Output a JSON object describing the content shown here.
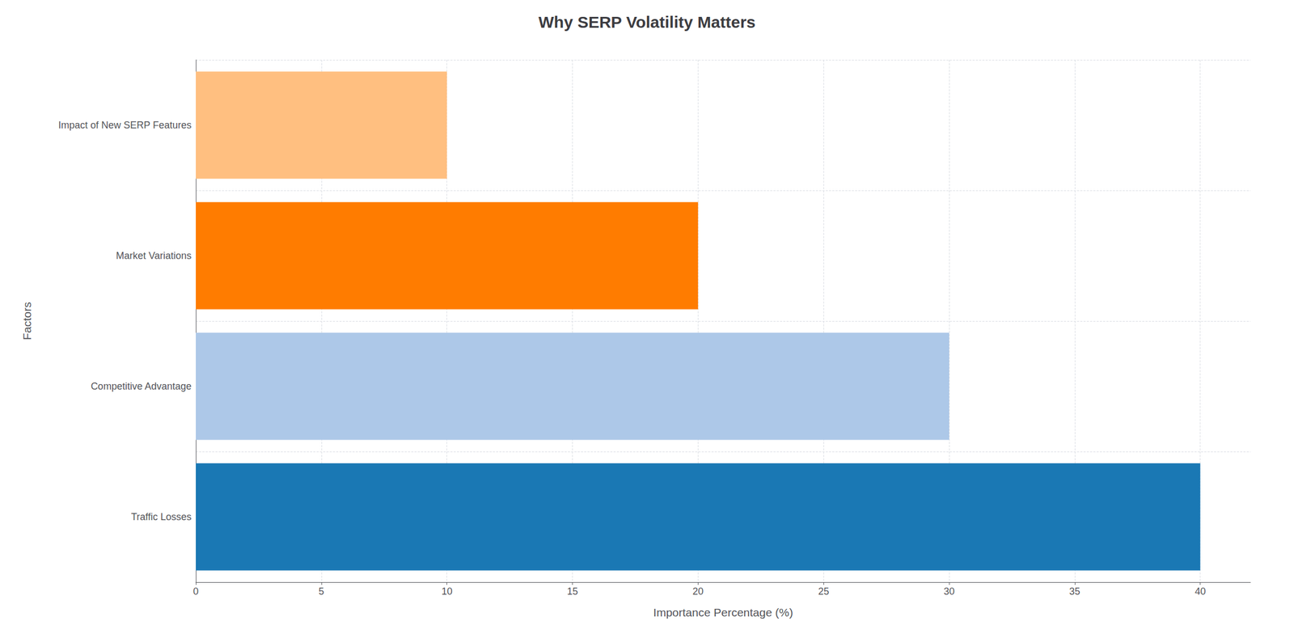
{
  "chart_data": {
    "type": "bar",
    "orientation": "horizontal",
    "title": "Why SERP Volatility Matters",
    "xlabel": "Importance Percentage (%)",
    "ylabel": "Factors",
    "categories": [
      "Traffic Losses",
      "Competitive Advantage",
      "Market Variations",
      "Impact of New SERP Features"
    ],
    "values": [
      40,
      30,
      20,
      10
    ],
    "colors": [
      "#1a78b4",
      "#adc8e8",
      "#ff7c00",
      "#ffbf80"
    ],
    "xlim": [
      0,
      42
    ],
    "xticks": [
      0,
      5,
      10,
      15,
      20,
      25,
      30,
      35,
      40
    ],
    "grid": true
  }
}
